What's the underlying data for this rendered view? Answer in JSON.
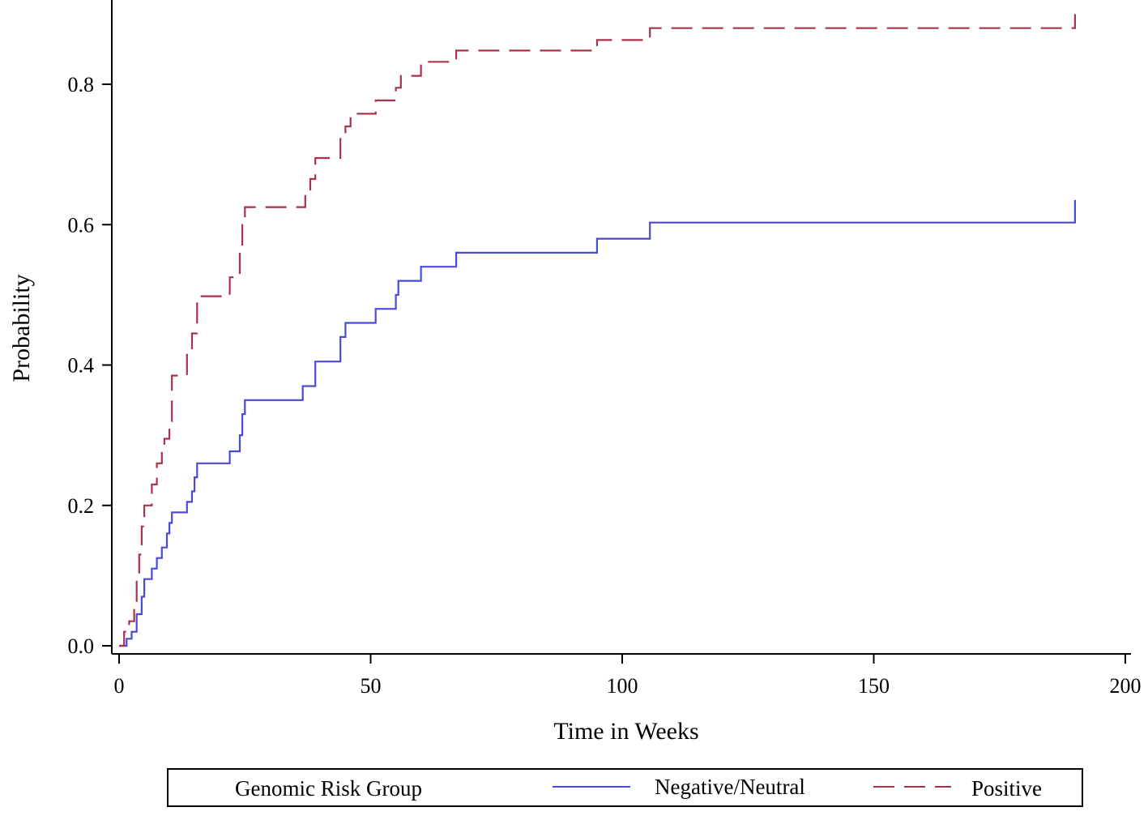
{
  "chart_data": {
    "type": "line",
    "title": "",
    "xlabel": "Time in Weeks",
    "ylabel": "Probability",
    "xlim": [
      0,
      200
    ],
    "ylim": [
      0.0,
      0.9
    ],
    "x_ticks": [
      0,
      50,
      100,
      150,
      200
    ],
    "y_ticks": [
      0.0,
      0.2,
      0.4,
      0.6,
      0.8
    ],
    "x_tick_labels": [
      "0",
      "50",
      "100",
      "150",
      "200"
    ],
    "y_tick_labels": [
      "0.0",
      "0.2",
      "0.4",
      "0.6",
      "0.8"
    ],
    "grid": false,
    "legend": {
      "title": "Genomic Risk Group",
      "position": "bottom"
    },
    "series": [
      {
        "name": "Negative/Neutral",
        "style": "solid",
        "color": "#4a4ad8",
        "step": true,
        "points": [
          [
            0,
            0.0
          ],
          [
            1,
            0.0
          ],
          [
            1.5,
            0.01
          ],
          [
            2.5,
            0.02
          ],
          [
            3.5,
            0.045
          ],
          [
            4.5,
            0.07
          ],
          [
            5,
            0.095
          ],
          [
            6.5,
            0.11
          ],
          [
            7.5,
            0.125
          ],
          [
            8.5,
            0.14
          ],
          [
            9.5,
            0.16
          ],
          [
            10,
            0.175
          ],
          [
            10.5,
            0.19
          ],
          [
            13,
            0.19
          ],
          [
            13.5,
            0.205
          ],
          [
            14.5,
            0.22
          ],
          [
            15,
            0.24
          ],
          [
            15.5,
            0.26
          ],
          [
            21.5,
            0.26
          ],
          [
            22,
            0.277
          ],
          [
            23.5,
            0.277
          ],
          [
            24,
            0.3
          ],
          [
            24.5,
            0.33
          ],
          [
            25,
            0.35
          ],
          [
            36,
            0.35
          ],
          [
            36.5,
            0.37
          ],
          [
            38.5,
            0.37
          ],
          [
            39,
            0.405
          ],
          [
            43.5,
            0.405
          ],
          [
            44,
            0.44
          ],
          [
            45,
            0.46
          ],
          [
            50.5,
            0.46
          ],
          [
            51,
            0.48
          ],
          [
            54.5,
            0.48
          ],
          [
            55,
            0.5
          ],
          [
            55.5,
            0.52
          ],
          [
            59.5,
            0.52
          ],
          [
            60,
            0.54
          ],
          [
            66.5,
            0.54
          ],
          [
            67,
            0.56
          ],
          [
            94.5,
            0.56
          ],
          [
            95,
            0.58
          ],
          [
            105,
            0.58
          ],
          [
            105.5,
            0.603
          ],
          [
            190,
            0.603
          ],
          [
            190,
            0.635
          ]
        ]
      },
      {
        "name": "Positive",
        "style": "dashed",
        "color": "#a8324a",
        "step": true,
        "points": [
          [
            0,
            0.0
          ],
          [
            0.5,
            0.0
          ],
          [
            1,
            0.02
          ],
          [
            2,
            0.035
          ],
          [
            3,
            0.06
          ],
          [
            3.5,
            0.1
          ],
          [
            4,
            0.13
          ],
          [
            4.5,
            0.17
          ],
          [
            5,
            0.2
          ],
          [
            6.5,
            0.23
          ],
          [
            7.5,
            0.26
          ],
          [
            8.5,
            0.275
          ],
          [
            9,
            0.295
          ],
          [
            10,
            0.32
          ],
          [
            10.5,
            0.385
          ],
          [
            13,
            0.385
          ],
          [
            13.5,
            0.42
          ],
          [
            14.5,
            0.445
          ],
          [
            15.5,
            0.498
          ],
          [
            21.5,
            0.498
          ],
          [
            22,
            0.525
          ],
          [
            23.5,
            0.525
          ],
          [
            24,
            0.56
          ],
          [
            24.5,
            0.6
          ],
          [
            25,
            0.625
          ],
          [
            36,
            0.625
          ],
          [
            37,
            0.65
          ],
          [
            38,
            0.665
          ],
          [
            39,
            0.695
          ],
          [
            43.5,
            0.695
          ],
          [
            44,
            0.725
          ],
          [
            45,
            0.74
          ],
          [
            46,
            0.758
          ],
          [
            50.5,
            0.758
          ],
          [
            51,
            0.777
          ],
          [
            54.5,
            0.777
          ],
          [
            55,
            0.795
          ],
          [
            56,
            0.812
          ],
          [
            59.5,
            0.812
          ],
          [
            60,
            0.832
          ],
          [
            66.5,
            0.832
          ],
          [
            67,
            0.848
          ],
          [
            94.5,
            0.848
          ],
          [
            95,
            0.863
          ],
          [
            105,
            0.863
          ],
          [
            105.5,
            0.88
          ],
          [
            190,
            0.88
          ],
          [
            190,
            0.9
          ]
        ]
      }
    ]
  }
}
